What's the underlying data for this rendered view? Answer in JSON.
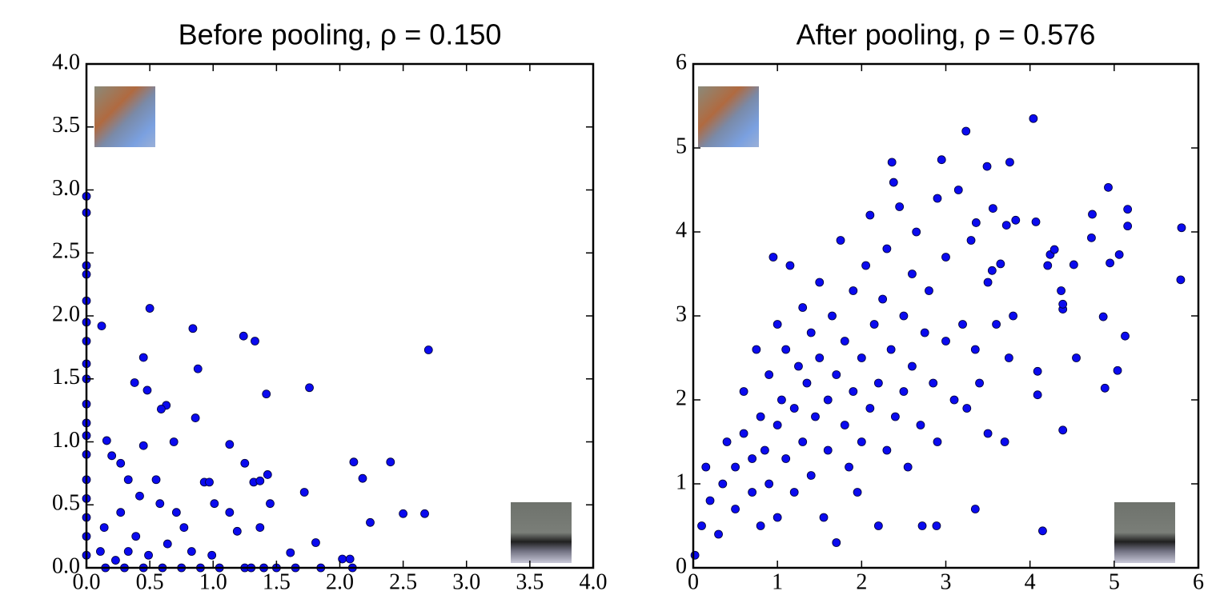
{
  "chart_data": [
    {
      "type": "scatter",
      "title": "Before pooling, ρ = 0.150",
      "color": "#0a0aee",
      "xlim": [
        0,
        4
      ],
      "ylim": [
        0,
        4
      ],
      "xticks": [
        {
          "value": 0,
          "label": "0.0"
        },
        0.5,
        {
          "value": 1,
          "label": "1.0"
        },
        1.5,
        {
          "value": 2,
          "label": "2.0"
        },
        2.5,
        {
          "value": 3,
          "label": "3.0"
        },
        3.5,
        {
          "value": 4,
          "label": "4.0"
        }
      ],
      "yticks": [
        {
          "value": 0,
          "label": "0.0"
        },
        0.5,
        {
          "value": 1,
          "label": "1.0"
        },
        1.5,
        {
          "value": 2,
          "label": "2.0"
        },
        2.5,
        {
          "value": 3,
          "label": "3.0"
        },
        3.5,
        {
          "value": 4,
          "label": "4.0"
        }
      ],
      "x": [
        2.7,
        0.5,
        0.12,
        0.84,
        1.24,
        1.33,
        0.45,
        0.88,
        1.76,
        1.42,
        0.38,
        0.48,
        0.63,
        0.59,
        0.86,
        1.13,
        0.16,
        0.69,
        0.45,
        2.4,
        2.11,
        1.25,
        2.18,
        1.43,
        1.32,
        1.37,
        0.93,
        0.97,
        1.72,
        1.45,
        2.67,
        2.5,
        2.24,
        1.37,
        1.19,
        1.01,
        1.13,
        1.81,
        1.61,
        2.02,
        2.08,
        0.2,
        0.27,
        0.33,
        0.42,
        0.55,
        0.58,
        0.71,
        0.77,
        0.27,
        0.14,
        0.39,
        0.64,
        0.83,
        0.33,
        0.11,
        0.49,
        0.23,
        0.99,
        0,
        0,
        0,
        0,
        0,
        0,
        0,
        0,
        0,
        0,
        0,
        0,
        0,
        0,
        0,
        0,
        0,
        0,
        0.15,
        0.3,
        0.45,
        0.6,
        0.75,
        0.9,
        1.05,
        1.25,
        1.3,
        1.4,
        1.5,
        1.65,
        1.85,
        2.1
      ],
      "values": [
        1.73,
        2.06,
        1.92,
        1.9,
        1.84,
        1.8,
        1.67,
        1.58,
        1.43,
        1.38,
        1.47,
        1.41,
        1.29,
        1.26,
        1.19,
        0.98,
        1.01,
        1.0,
        0.97,
        0.84,
        0.84,
        0.83,
        0.71,
        0.74,
        0.68,
        0.69,
        0.68,
        0.68,
        0.6,
        0.51,
        0.43,
        0.43,
        0.36,
        0.32,
        0.29,
        0.51,
        0.44,
        0.2,
        0.12,
        0.07,
        0.07,
        0.89,
        0.83,
        0.7,
        0.57,
        0.7,
        0.51,
        0.44,
        0.32,
        0.44,
        0.32,
        0.25,
        0.19,
        0.13,
        0.13,
        0.13,
        0.1,
        0.06,
        0.1,
        2.95,
        2.82,
        2.4,
        2.33,
        2.12,
        1.95,
        1.8,
        1.62,
        1.5,
        1.3,
        1.15,
        1.05,
        0.9,
        0.7,
        0.55,
        0.4,
        0.25,
        0.1,
        0,
        0,
        0,
        0,
        0,
        0,
        0,
        0,
        0,
        0,
        0,
        0,
        0,
        0
      ]
    },
    {
      "type": "scatter",
      "title": "After pooling, ρ = 0.576",
      "color": "#0a0aee",
      "xlim": [
        0,
        6
      ],
      "ylim": [
        0,
        6
      ],
      "xticks": [
        0,
        1,
        2,
        3,
        4,
        5,
        6
      ],
      "yticks": [
        0,
        1,
        2,
        3,
        4,
        5,
        6
      ],
      "x": [
        5.8,
        5.79,
        4.93,
        5.16,
        5.16,
        4.74,
        4.73,
        5.06,
        4.95,
        4.87,
        5.13,
        5.04,
        4.89,
        4.55,
        4.39,
        4.39,
        4.37,
        4.39,
        4.09,
        4.09,
        4.15,
        4.04,
        3.76,
        3.49,
        3.24,
        2.95,
        2.38,
        2.36,
        4.52,
        4.21,
        4.24,
        4.29,
        4.07,
        3.83,
        3.72,
        3.56,
        3.65,
        3.55,
        3.35,
        2.89,
        2.72,
        3.36,
        0.1,
        0.2,
        0.15,
        0.3,
        0.35,
        0.4,
        0.5,
        0.5,
        0.6,
        0.6,
        0.7,
        0.7,
        0.75,
        0.8,
        0.8,
        0.85,
        0.9,
        0.9,
        0.95,
        1.0,
        1.0,
        1.0,
        1.05,
        1.1,
        1.1,
        1.15,
        1.2,
        1.2,
        1.25,
        1.3,
        1.3,
        1.35,
        1.4,
        1.4,
        1.45,
        1.5,
        1.5,
        1.55,
        1.6,
        1.6,
        1.65,
        1.7,
        1.7,
        1.75,
        1.8,
        1.8,
        1.85,
        1.9,
        1.9,
        1.95,
        2.0,
        2.0,
        2.05,
        2.1,
        2.1,
        2.15,
        2.2,
        2.2,
        2.25,
        2.3,
        2.3,
        2.35,
        2.4,
        2.45,
        2.5,
        2.5,
        2.55,
        2.6,
        2.6,
        2.65,
        2.7,
        2.75,
        2.8,
        2.85,
        2.9,
        2.9,
        3.0,
        3.0,
        3.1,
        3.15,
        3.2,
        3.25,
        3.3,
        3.35,
        3.4,
        3.5,
        3.5,
        3.6,
        3.7,
        3.75,
        3.8,
        0.02
      ],
      "values": [
        4.05,
        3.43,
        4.53,
        4.27,
        4.07,
        4.21,
        3.93,
        3.73,
        3.63,
        2.99,
        2.76,
        2.35,
        2.14,
        2.5,
        3.08,
        3.14,
        3.3,
        1.64,
        2.34,
        2.06,
        0.44,
        5.35,
        4.83,
        4.78,
        5.2,
        4.86,
        4.59,
        4.83,
        3.61,
        3.6,
        3.73,
        3.79,
        4.12,
        4.14,
        4.08,
        4.28,
        3.62,
        3.54,
        0.7,
        0.5,
        0.5,
        4.11,
        0.5,
        0.8,
        1.2,
        0.4,
        1.0,
        1.5,
        0.7,
        1.2,
        2.1,
        1.6,
        0.9,
        1.3,
        2.6,
        1.8,
        0.5,
        1.4,
        2.3,
        1.0,
        3.7,
        2.9,
        1.7,
        0.6,
        2.0,
        1.3,
        2.6,
        3.6,
        1.9,
        0.9,
        2.4,
        1.5,
        3.1,
        2.2,
        1.1,
        2.8,
        1.8,
        3.4,
        2.5,
        0.6,
        2.0,
        1.4,
        3.0,
        2.3,
        0.3,
        3.9,
        1.7,
        2.7,
        1.2,
        3.3,
        2.1,
        0.9,
        2.5,
        1.5,
        3.6,
        4.2,
        1.9,
        2.9,
        0.5,
        2.2,
        3.2,
        1.4,
        3.8,
        2.6,
        1.8,
        4.3,
        2.1,
        3.0,
        1.2,
        3.5,
        2.4,
        4.0,
        1.7,
        2.8,
        3.3,
        2.2,
        4.4,
        1.5,
        2.7,
        3.7,
        2.0,
        4.5,
        2.9,
        1.9,
        3.9,
        2.6,
        2.2,
        3.4,
        1.6,
        2.9,
        1.5,
        2.5,
        3.0,
        0.15
      ]
    }
  ]
}
